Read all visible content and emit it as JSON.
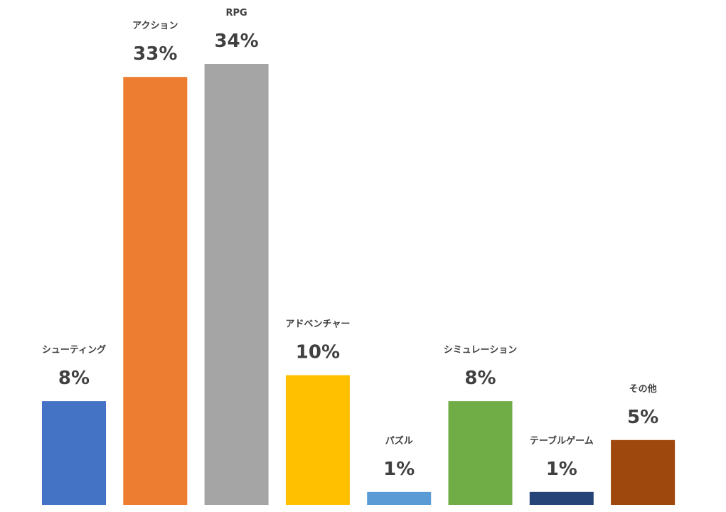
{
  "chart_data": {
    "type": "bar",
    "categories": [
      "シューティング",
      "アクション",
      "RPG",
      "アドベンチャー",
      "パズル",
      "シミュレーション",
      "テーブルゲーム",
      "その他"
    ],
    "values": [
      8,
      33,
      34,
      10,
      1,
      8,
      1,
      5
    ],
    "value_labels": [
      "8%",
      "33%",
      "34%",
      "10%",
      "1%",
      "8%",
      "1%",
      "5%"
    ],
    "colors": [
      "#4472C4",
      "#ED7D31",
      "#A5A5A5",
      "#FFC000",
      "#5B9BD5",
      "#70AD47",
      "#264478",
      "#9E480E"
    ],
    "ylim": [
      0,
      34
    ],
    "grid": false,
    "legend": "none",
    "title": "",
    "xlabel": "",
    "ylabel": ""
  }
}
